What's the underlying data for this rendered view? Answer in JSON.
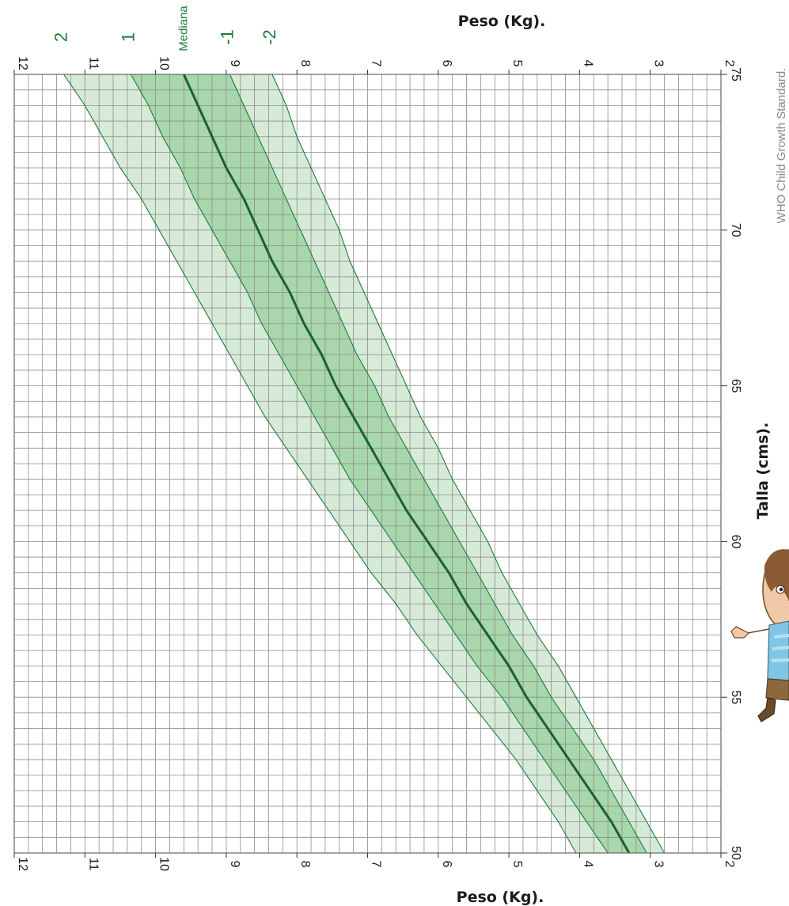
{
  "chart_data": {
    "type": "line",
    "title": "",
    "xlabel": "Talla (cms).",
    "ylabel": "Peso (Kg).",
    "xlim": [
      50,
      75
    ],
    "ylim": [
      2,
      12
    ],
    "x_ticks": [
      "50",
      "55",
      "60",
      "65",
      "70",
      "75"
    ],
    "y_ticks": [
      "2",
      "3",
      "4",
      "5",
      "6",
      "7",
      "8",
      "9",
      "10",
      "11",
      "12"
    ],
    "grid": true,
    "x": [
      50,
      51,
      52,
      53,
      54,
      55,
      56,
      57,
      58,
      59,
      60,
      61,
      62,
      63,
      64,
      65,
      66,
      67,
      68,
      69,
      70,
      71,
      72,
      73,
      74,
      75
    ],
    "series": [
      {
        "name": "2",
        "values": [
          4.05,
          4.3,
          4.6,
          4.9,
          5.25,
          5.6,
          5.95,
          6.3,
          6.6,
          6.95,
          7.25,
          7.55,
          7.85,
          8.15,
          8.45,
          8.7,
          8.95,
          9.2,
          9.45,
          9.7,
          9.95,
          10.2,
          10.5,
          10.75,
          11.0,
          11.3
        ]
      },
      {
        "name": "1",
        "values": [
          3.6,
          3.9,
          4.2,
          4.5,
          4.8,
          5.1,
          5.45,
          5.75,
          6.05,
          6.35,
          6.65,
          6.95,
          7.25,
          7.5,
          7.75,
          8.0,
          8.25,
          8.5,
          8.7,
          8.95,
          9.2,
          9.45,
          9.65,
          9.9,
          10.1,
          10.35
        ]
      },
      {
        "name": "Mediana",
        "values": [
          3.3,
          3.55,
          3.85,
          4.15,
          4.45,
          4.75,
          5.0,
          5.3,
          5.6,
          5.85,
          6.15,
          6.45,
          6.7,
          6.95,
          7.2,
          7.45,
          7.65,
          7.9,
          8.1,
          8.35,
          8.55,
          8.75,
          9.0,
          9.2,
          9.4,
          9.6
        ]
      },
      {
        "name": "-1",
        "values": [
          3.05,
          3.3,
          3.55,
          3.8,
          4.1,
          4.4,
          4.65,
          4.95,
          5.2,
          5.45,
          5.7,
          5.95,
          6.2,
          6.45,
          6.7,
          6.9,
          7.15,
          7.35,
          7.55,
          7.75,
          7.95,
          8.15,
          8.35,
          8.55,
          8.75,
          8.95
        ]
      },
      {
        "name": "-2",
        "values": [
          2.8,
          3.05,
          3.3,
          3.55,
          3.8,
          4.05,
          4.3,
          4.6,
          4.85,
          5.1,
          5.3,
          5.55,
          5.8,
          6.0,
          6.25,
          6.45,
          6.65,
          6.85,
          7.05,
          7.25,
          7.4,
          7.6,
          7.8,
          8.0,
          8.15,
          8.35
        ]
      }
    ],
    "band_colors": {
      "outer": "#d6ead8",
      "inner": "#a8d7ac",
      "line": "#1e7a3a",
      "median": "#1b6030",
      "grid": "#8c8c8c"
    },
    "credit": "WHO Child Growth Standard.",
    "illustration": "child-cartoon"
  }
}
